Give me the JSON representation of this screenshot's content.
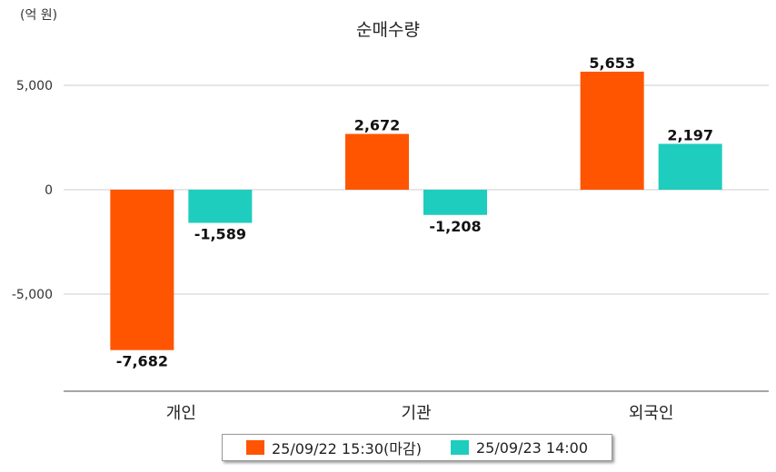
{
  "chart_data": {
    "type": "bar",
    "title": "순매수량",
    "unit_label": "(억 원)",
    "categories": [
      "개인",
      "기관",
      "외국인"
    ],
    "series": [
      {
        "name": "25/09/22 15:30(마감)",
        "color": "#ff5500",
        "values": [
          -7682,
          2672,
          5653
        ]
      },
      {
        "name": "25/09/23 14:00",
        "color": "#1ecdbe",
        "values": [
          -1589,
          -1208,
          2197
        ]
      }
    ],
    "value_labels": [
      [
        "-7,682",
        "2,672",
        "5,653"
      ],
      [
        "-1,589",
        "-1,208",
        "2,197"
      ]
    ],
    "yticks": [
      5000,
      0,
      -5000
    ],
    "ytick_labels": [
      "5,000",
      "0",
      "-5,000"
    ],
    "ylim": [
      -9600,
      6400
    ],
    "grid": true,
    "legend_position": "bottom"
  }
}
